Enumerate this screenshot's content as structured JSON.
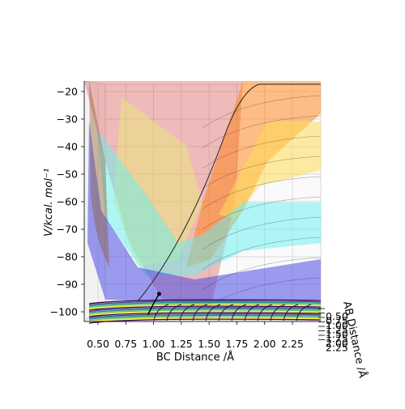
{
  "chart_data": {
    "type": "surface3d",
    "xlabel": "BC Distance /Å",
    "ylabel": "AB Distance /Å",
    "zlabel": "V/kcal. mol⁻¹",
    "x_ticks": [
      "0.50",
      "0.75",
      "1.00",
      "1.25",
      "1.50",
      "1.75",
      "2.00",
      "2.25"
    ],
    "x_tick_values": [
      0.5,
      0.75,
      1.0,
      1.25,
      1.5,
      1.75,
      2.0,
      2.25
    ],
    "xlim": [
      0.35,
      2.5
    ],
    "z_ticks": [
      "−20",
      "−30",
      "−40",
      "−50",
      "−60",
      "−70",
      "−80",
      "−90",
      "−100"
    ],
    "z_tick_values": [
      -20,
      -30,
      -40,
      -50,
      -60,
      -70,
      -80,
      -90,
      -100
    ],
    "zlim": [
      -104.5,
      -18
    ],
    "y_ticks": [
      "0.50",
      "0.75",
      "1.00",
      "1.25",
      "1.50",
      "1.75",
      "2.00",
      "2.25"
    ],
    "grid": true,
    "colormap": "viridis",
    "surface_colors": [
      "#d62728",
      "#ff7f0e",
      "#ffdd57",
      "#e8f070",
      "#64f0f0",
      "#3ab4f0",
      "#4b4be6"
    ],
    "contour_colors": [
      "#440154",
      "#3b528b",
      "#21918c",
      "#5ec962",
      "#fde725"
    ],
    "trajectory": [
      {
        "x": 0.95,
        "z": -101
      },
      {
        "x": 1.0,
        "z": -97
      },
      {
        "x": 1.05,
        "z": -93.5
      }
    ],
    "marker": {
      "x": 1.05,
      "z": -93.5
    }
  }
}
